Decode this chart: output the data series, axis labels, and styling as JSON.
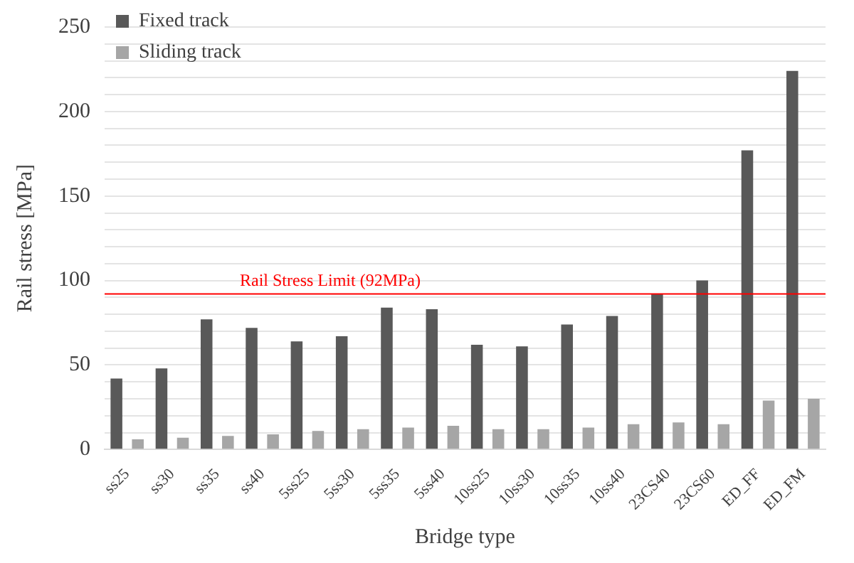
{
  "chart_data": {
    "type": "bar",
    "xlabel": "Bridge type",
    "ylabel": "Rail stress [MPa]",
    "categories": [
      "ss25",
      "ss30",
      "ss35",
      "ss40",
      "5ss25",
      "5ss30",
      "5ss35",
      "5ss40",
      "10ss25",
      "10ss30",
      "10ss35",
      "10ss40",
      "23CS40",
      "23CS60",
      "ED_FF",
      "ED_FM"
    ],
    "series": [
      {
        "name": "Fixed track",
        "color": "#595959",
        "values": [
          42,
          48,
          77,
          72,
          64,
          67,
          84,
          83,
          62,
          61,
          74,
          79,
          92,
          100,
          177,
          224
        ]
      },
      {
        "name": "Sliding track",
        "color": "#a6a6a6",
        "values": [
          6,
          7,
          8,
          9,
          11,
          12,
          13,
          14,
          12,
          12,
          13,
          15,
          16,
          15,
          29,
          30
        ]
      }
    ],
    "ylim": [
      0,
      250
    ],
    "yticks": [
      0,
      {
        "value": 10,
        "label": null
      },
      {
        "value": 20,
        "label": null
      },
      {
        "value": 30,
        "label": null
      },
      {
        "value": 40,
        "label": null
      },
      50,
      {
        "value": 60,
        "label": null
      },
      {
        "value": 70,
        "label": null
      },
      {
        "value": 80,
        "label": null
      },
      {
        "value": 90,
        "label": null
      },
      100,
      {
        "value": 110,
        "label": null
      },
      {
        "value": 120,
        "label": null
      },
      {
        "value": 130,
        "label": null
      },
      {
        "value": 140,
        "label": null
      },
      150,
      {
        "value": 160,
        "label": null
      },
      {
        "value": 170,
        "label": null
      },
      {
        "value": 180,
        "label": null
      },
      {
        "value": 190,
        "label": null
      },
      200,
      {
        "value": 210,
        "label": null
      },
      {
        "value": 220,
        "label": null
      },
      {
        "value": 230,
        "label": null
      },
      {
        "value": 240,
        "label": null
      },
      250
    ],
    "ref_lines": [
      {
        "axis": "y",
        "value": 92,
        "label": "Rail Stress Limit (92MPa)",
        "color": "#ff0000"
      }
    ],
    "grid": "y",
    "legend": "top left"
  }
}
